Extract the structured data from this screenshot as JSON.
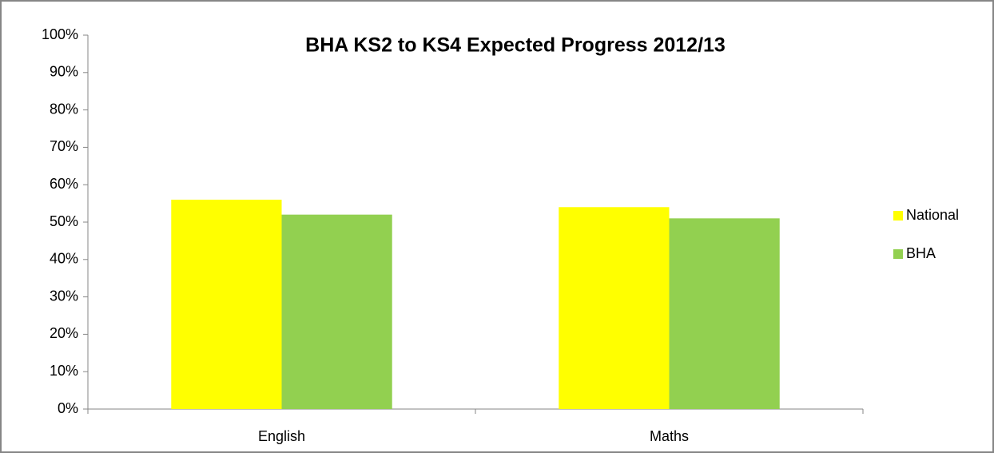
{
  "chart_data": {
    "type": "bar",
    "title": "BHA KS2 to KS4 Expected Progress 2012/13",
    "categories": [
      "English",
      "Maths"
    ],
    "series": [
      {
        "name": "National",
        "color": "#ffff00",
        "values": [
          56,
          54
        ]
      },
      {
        "name": "BHA",
        "color": "#92d050",
        "values": [
          52,
          51
        ]
      }
    ],
    "ylim": [
      0,
      100
    ],
    "yticks": [
      {
        "value": 0,
        "label": "0%"
      },
      {
        "value": 10,
        "label": "10%"
      },
      {
        "value": 20,
        "label": "20%"
      },
      {
        "value": 30,
        "label": "30%"
      },
      {
        "value": 40,
        "label": "40%"
      },
      {
        "value": 50,
        "label": "50%"
      },
      {
        "value": 60,
        "label": "60%"
      },
      {
        "value": 70,
        "label": "70%"
      },
      {
        "value": 80,
        "label": "80%"
      },
      {
        "value": 90,
        "label": "90%"
      },
      {
        "value": 100,
        "label": "100%"
      }
    ],
    "grid": false,
    "legend": "right"
  }
}
